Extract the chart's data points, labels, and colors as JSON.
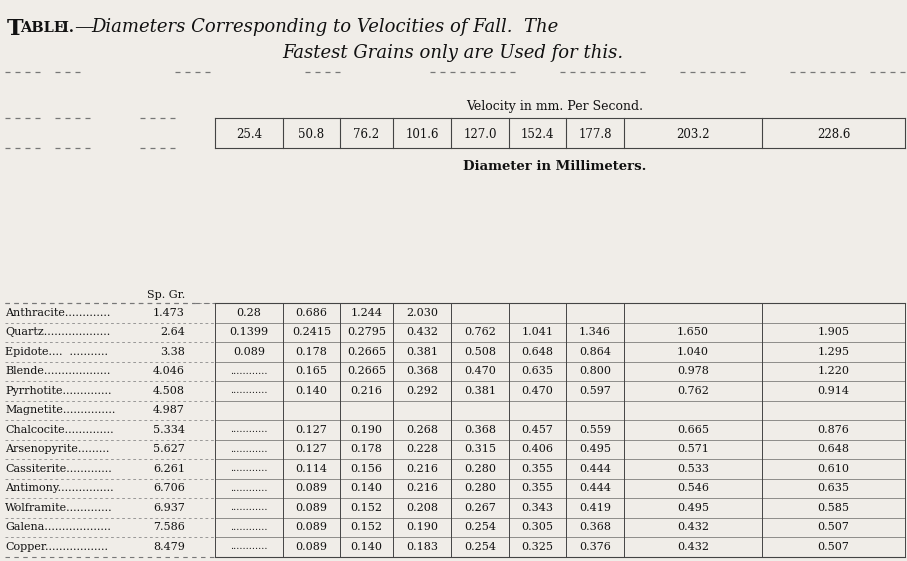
{
  "title_prefix_big": "T",
  "title_prefix_small": "ABLE",
  "title_roman": " I.",
  "title_dash": "—",
  "title_italic": "Diameters Corresponding to Velocities of Fall.  The",
  "title_italic2": "Fastest Grains only are Used for this.",
  "velocity_label": "Velocity in mm. Per Second.",
  "diameter_label": "Diameter in Millimeters.",
  "velocities": [
    "25.4",
    "50.8",
    "76.2",
    "101.6",
    "127.0",
    "152.4",
    "177.8",
    "203.2",
    "228.6"
  ],
  "sp_gr_label": "Sp. Gr.",
  "minerals": [
    "Anthracite.............",
    "Quartz...................",
    "Epidote....  ...........",
    "Blende...................",
    "Pyrrhotite..............",
    "Magnetite...............",
    "Chalcocite..............",
    "Arsenopyrite.........",
    "Cassiterite.............",
    "Antimony................",
    "Wolframite.............",
    "Galena...................",
    "Copper.................."
  ],
  "sp_gr": [
    "1.473",
    "2.64",
    "3.38",
    "4.046",
    "4.508",
    "4.987",
    "5.334",
    "5.627",
    "6.261",
    "6.706",
    "6.937",
    "7.586",
    "8.479"
  ],
  "col1_vals": [
    "0.28",
    "0.1399",
    "0.089",
    "",
    "",
    "",
    "",
    "",
    "",
    "",
    "",
    "",
    ""
  ],
  "data": [
    [
      "0.28",
      "0.686",
      "1.244",
      "2.030",
      "",
      "",
      "",
      "",
      ""
    ],
    [
      "0.1399",
      "0.2415",
      "0.2795",
      "0.432",
      "0.762",
      "1.041",
      "1.346",
      "1.650",
      "1.905"
    ],
    [
      "0.089",
      "0.178",
      "0.2665",
      "0.381",
      "0.508",
      "0.648",
      "0.864",
      "1.040",
      "1.295"
    ],
    [
      "",
      "0.165",
      "0.2665",
      "0.368",
      "0.470",
      "0.635",
      "0.800",
      "0.978",
      "1.220"
    ],
    [
      "",
      "0.140",
      "0.216",
      "0.292",
      "0.381",
      "0.470",
      "0.597",
      "0.762",
      "0.914"
    ],
    [
      "",
      "",
      "",
      "",
      "",
      "",
      "",
      "",
      ""
    ],
    [
      "",
      "0.127",
      "0.190",
      "0.268",
      "0.368",
      "0.457",
      "0.559",
      "0.665",
      "0.876"
    ],
    [
      "",
      "0.127",
      "0.178",
      "0.228",
      "0.315",
      "0.406",
      "0.495",
      "0.571",
      "0.648"
    ],
    [
      "",
      "0.114",
      "0.156",
      "0.216",
      "0.280",
      "0.355",
      "0.444",
      "0.533",
      "0.610"
    ],
    [
      "",
      "0.089",
      "0.140",
      "0.216",
      "0.280",
      "0.355",
      "0.444",
      "0.546",
      "0.635"
    ],
    [
      "",
      "0.089",
      "0.152",
      "0.208",
      "0.267",
      "0.343",
      "0.419",
      "0.495",
      "0.585"
    ],
    [
      "",
      "0.089",
      "0.152",
      "0.190",
      "0.254",
      "0.305",
      "0.368",
      "0.432",
      "0.507"
    ],
    [
      "",
      "0.089",
      "0.140",
      "0.183",
      "0.254",
      "0.325",
      "0.376",
      "0.432",
      "0.507"
    ]
  ],
  "has_dots": [
    false,
    true,
    false,
    true,
    true,
    false,
    true,
    true,
    true,
    true,
    true,
    true,
    true
  ],
  "bg_color": "#f0ede8",
  "text_color": "#111111",
  "line_color": "#444444",
  "dash_color": "#777777"
}
